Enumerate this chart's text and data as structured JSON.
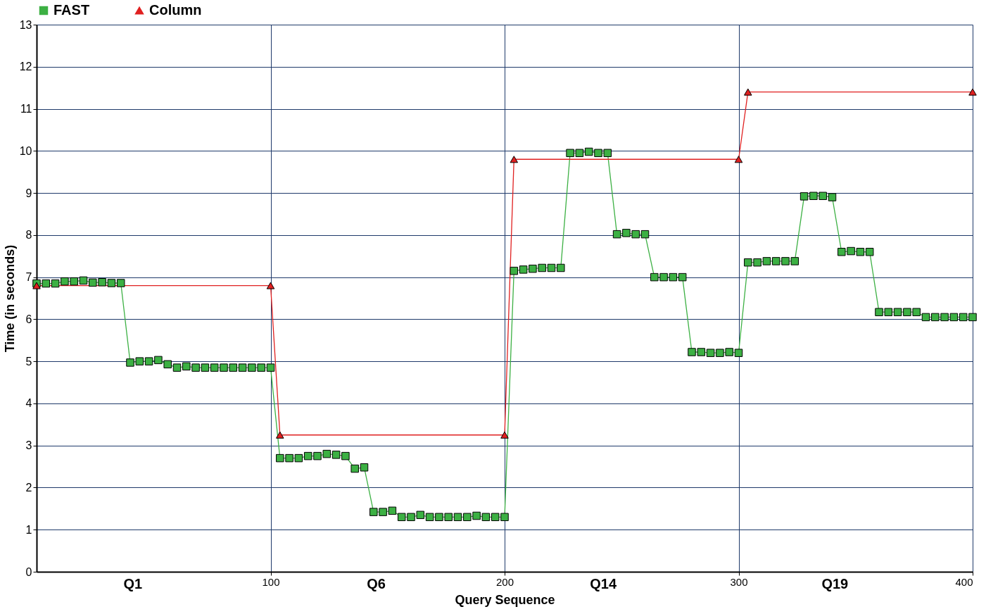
{
  "chart_data": {
    "type": "line",
    "xlabel": "Query Sequence",
    "ylabel": "Time (in seconds)",
    "xlim": [
      0,
      400
    ],
    "ylim": [
      0,
      13
    ],
    "xticks": [
      {
        "value": 41,
        "label": "Q1"
      },
      100,
      {
        "value": 145,
        "label": "Q6"
      },
      200,
      {
        "value": 242,
        "label": "Q14"
      },
      300,
      {
        "value": 341,
        "label": "Q19"
      },
      400
    ],
    "yticks": [
      0,
      1,
      2,
      3,
      4,
      5,
      6,
      7,
      8,
      9,
      10,
      11,
      12,
      13
    ],
    "grid": true,
    "legend": "top left",
    "line_style": "solid",
    "series": [
      {
        "name": "FAST",
        "color": "#3cb043",
        "marker": "square",
        "x": [
          0,
          4,
          8,
          12,
          16,
          20,
          24,
          28,
          32,
          36,
          40,
          44,
          48,
          52,
          56,
          60,
          64,
          68,
          72,
          76,
          80,
          84,
          88,
          92,
          96,
          100,
          104,
          108,
          112,
          116,
          120,
          124,
          128,
          132,
          136,
          140,
          144,
          148,
          152,
          156,
          160,
          164,
          168,
          172,
          176,
          180,
          184,
          188,
          192,
          196,
          200,
          204,
          208,
          212,
          216,
          220,
          224,
          228,
          232,
          236,
          240,
          244,
          248,
          252,
          256,
          260,
          264,
          268,
          272,
          276,
          280,
          284,
          288,
          292,
          296,
          300,
          304,
          308,
          312,
          316,
          320,
          324,
          328,
          332,
          336,
          340,
          344,
          348,
          352,
          356,
          360,
          364,
          368,
          372,
          376,
          380,
          384,
          388,
          392,
          396,
          400
        ],
        "values": [
          6.85,
          6.85,
          6.85,
          6.9,
          6.9,
          6.92,
          6.87,
          6.88,
          6.86,
          6.86,
          4.97,
          5.0,
          5.0,
          5.03,
          4.93,
          4.85,
          4.88,
          4.85,
          4.85,
          4.85,
          4.85,
          4.85,
          4.85,
          4.85,
          4.85,
          4.85,
          2.7,
          2.7,
          2.7,
          2.75,
          2.75,
          2.8,
          2.78,
          2.75,
          2.45,
          2.48,
          1.42,
          1.42,
          1.45,
          1.3,
          1.3,
          1.35,
          1.3,
          1.3,
          1.3,
          1.3,
          1.3,
          1.33,
          1.3,
          1.3,
          1.3,
          7.15,
          7.18,
          7.2,
          7.22,
          7.22,
          7.22,
          9.95,
          9.95,
          9.98,
          9.95,
          9.95,
          8.02,
          8.05,
          8.02,
          8.02,
          7.0,
          7.0,
          7.0,
          7.0,
          5.22,
          5.22,
          5.2,
          5.2,
          5.22,
          5.2,
          7.35,
          7.35,
          7.38,
          7.38,
          7.38,
          7.38,
          8.92,
          8.93,
          8.93,
          8.9,
          7.6,
          7.62,
          7.6,
          7.6,
          6.17,
          6.17,
          6.17,
          6.17,
          6.17,
          6.05,
          6.05,
          6.05,
          6.05,
          6.05,
          6.05
        ]
      },
      {
        "name": "Column",
        "color": "#e02020",
        "marker": "triangle",
        "x": [
          0,
          100,
          104,
          200,
          204,
          300,
          304,
          400
        ],
        "values": [
          6.8,
          6.8,
          3.25,
          3.25,
          9.8,
          9.8,
          11.4,
          11.4
        ]
      }
    ]
  }
}
